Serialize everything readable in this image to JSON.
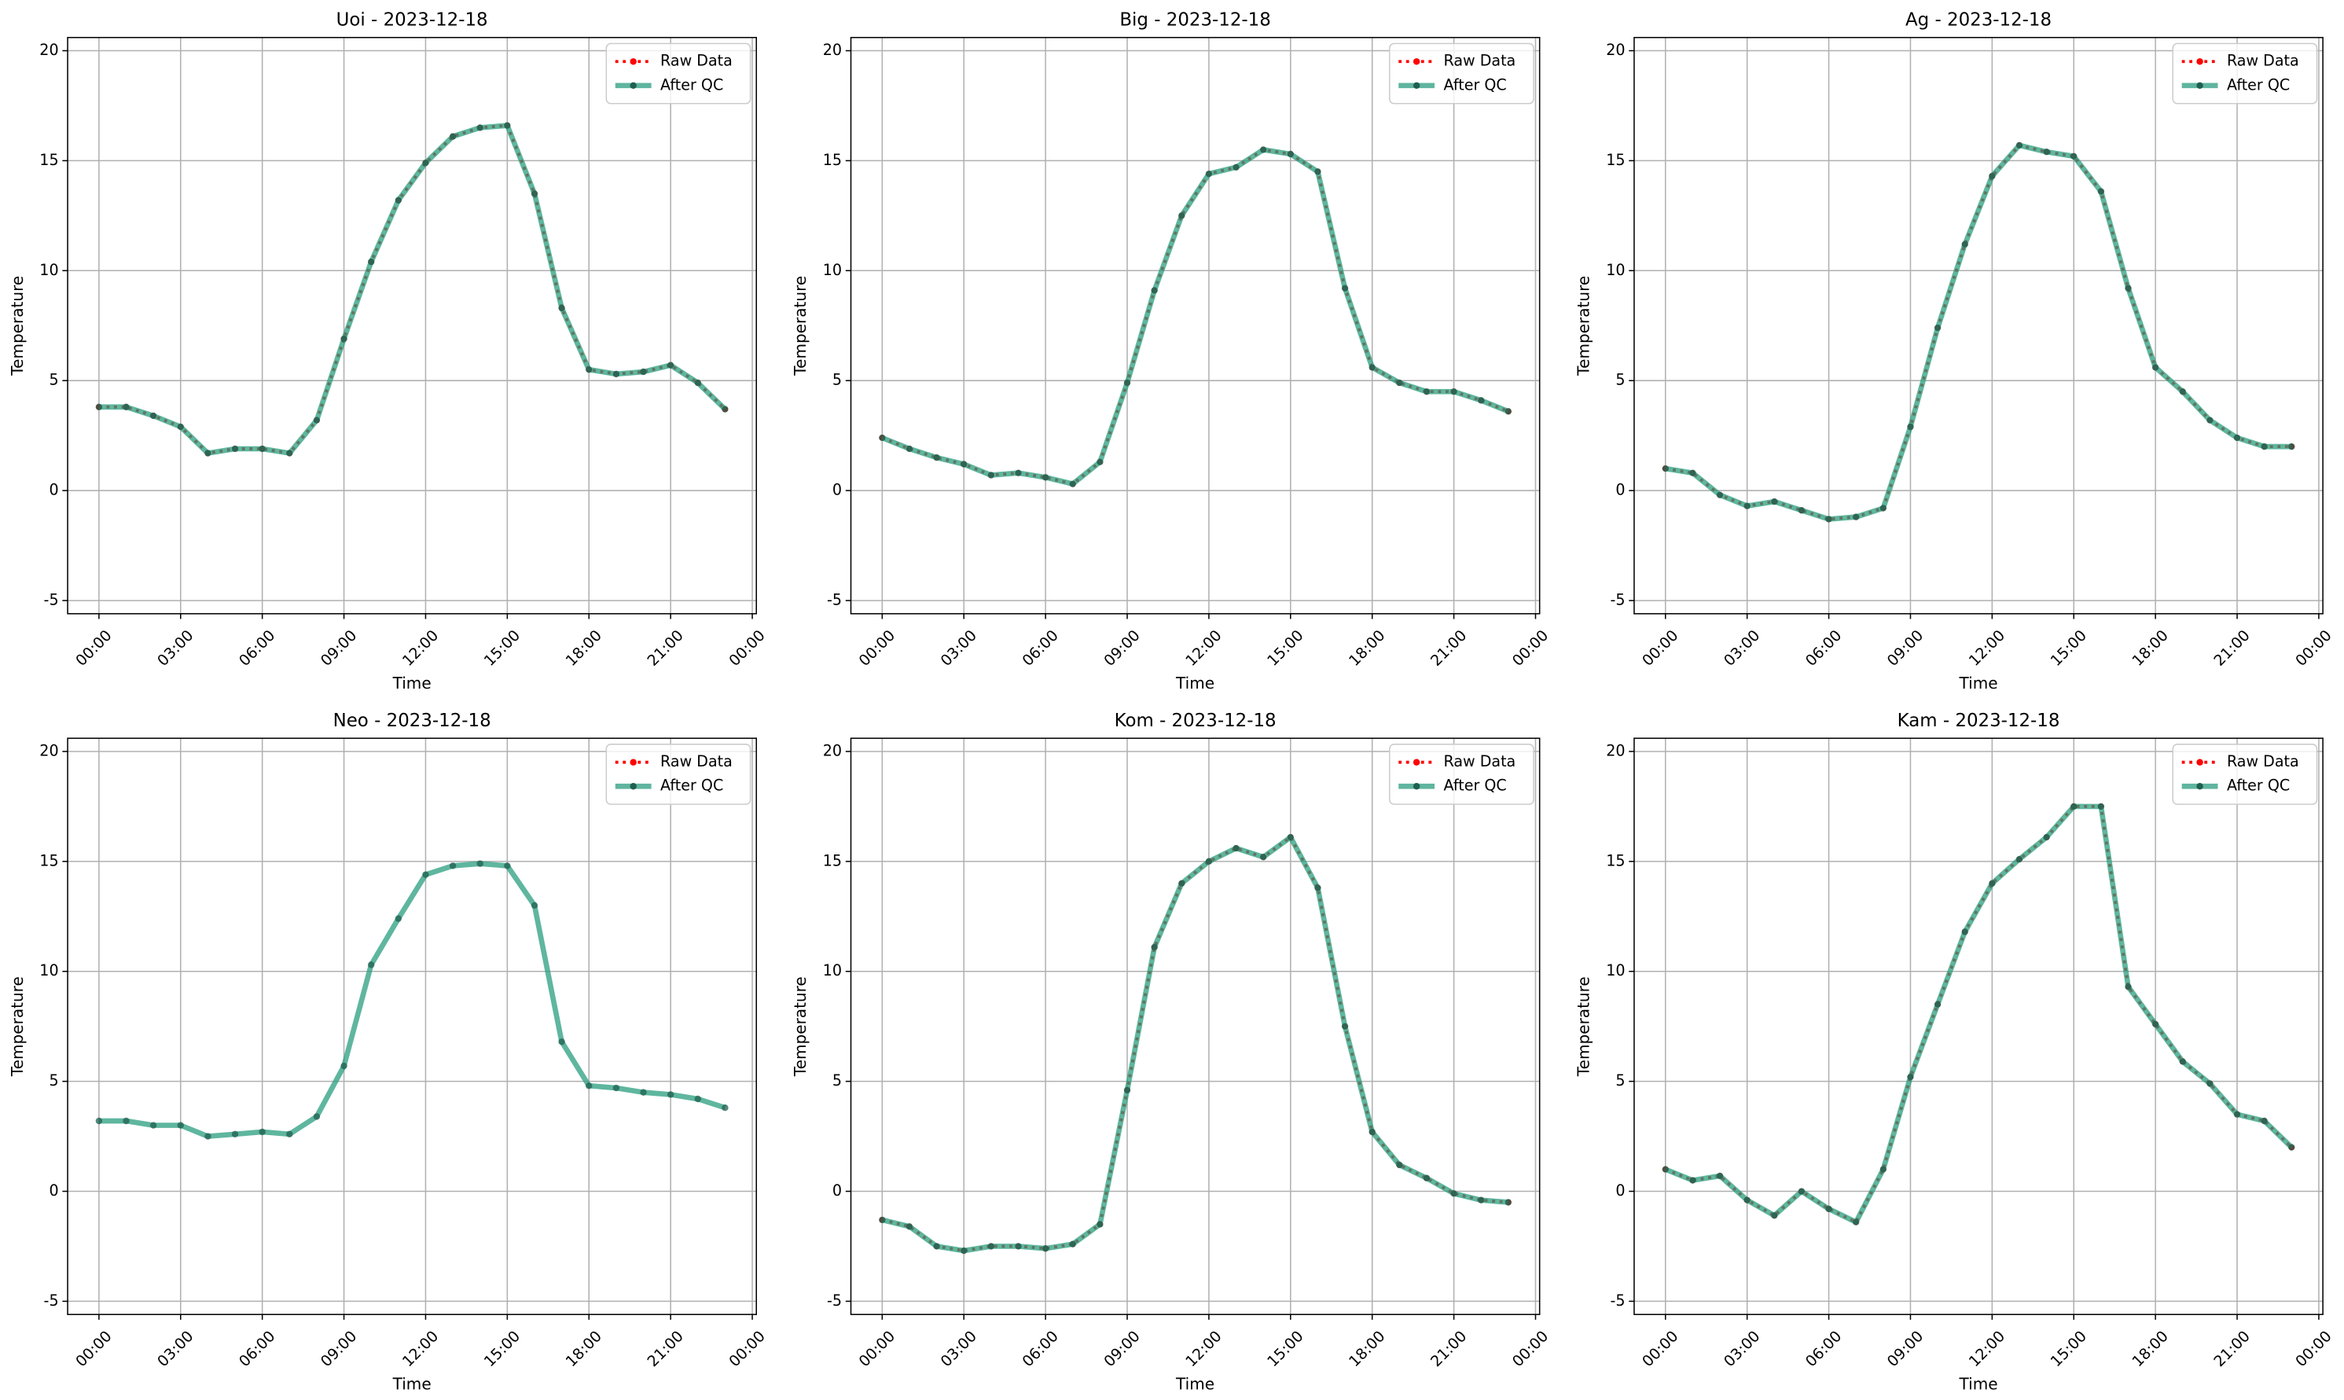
{
  "chart_data": [
    {
      "type": "line",
      "title": "Uoi - 2023-12-18",
      "xlabel": "Time",
      "ylabel": "Temperature",
      "x": [
        0,
        1,
        2,
        3,
        4,
        5,
        6,
        7,
        8,
        9,
        10,
        11,
        12,
        13,
        14,
        15,
        16,
        17,
        18,
        19,
        20,
        21,
        22,
        23
      ],
      "xlim": [
        -1.15,
        24.15
      ],
      "ylim": [
        -5.6,
        20.6
      ],
      "xticks": [
        {
          "value": 0,
          "label": "00:00"
        },
        {
          "value": 3,
          "label": "03:00"
        },
        {
          "value": 6,
          "label": "06:00"
        },
        {
          "value": 9,
          "label": "09:00"
        },
        {
          "value": 12,
          "label": "12:00"
        },
        {
          "value": 15,
          "label": "15:00"
        },
        {
          "value": 18,
          "label": "18:00"
        },
        {
          "value": 21,
          "label": "21:00"
        },
        {
          "value": 24,
          "label": "00:00"
        }
      ],
      "yticks": [
        -5,
        0,
        5,
        10,
        15,
        20
      ],
      "grid": true,
      "legend": "upper right",
      "series": [
        {
          "name": "Raw Data",
          "color": "#ff0000",
          "values": [
            3.8,
            3.8,
            3.4,
            2.9,
            1.7,
            1.9,
            1.9,
            1.7,
            3.2,
            6.9,
            10.4,
            13.2,
            14.9,
            16.1,
            16.5,
            16.6,
            13.5,
            8.3,
            5.5,
            5.3,
            5.4,
            5.7,
            4.9,
            3.7
          ]
        },
        {
          "name": "After QC",
          "color": "#2a9d7f",
          "values": [
            3.8,
            3.8,
            3.4,
            2.9,
            1.7,
            1.9,
            1.9,
            1.7,
            3.2,
            6.9,
            10.4,
            13.2,
            14.9,
            16.1,
            16.5,
            16.6,
            13.5,
            8.3,
            5.5,
            5.3,
            5.4,
            5.7,
            4.9,
            3.7
          ]
        }
      ]
    },
    {
      "type": "line",
      "title": "Big - 2023-12-18",
      "xlabel": "Time",
      "ylabel": "Temperature",
      "x": [
        0,
        1,
        2,
        3,
        4,
        5,
        6,
        7,
        8,
        9,
        10,
        11,
        12,
        13,
        14,
        15,
        16,
        17,
        18,
        19,
        20,
        21,
        22,
        23
      ],
      "xlim": [
        -1.15,
        24.15
      ],
      "ylim": [
        -5.6,
        20.6
      ],
      "xticks": [
        {
          "value": 0,
          "label": "00:00"
        },
        {
          "value": 3,
          "label": "03:00"
        },
        {
          "value": 6,
          "label": "06:00"
        },
        {
          "value": 9,
          "label": "09:00"
        },
        {
          "value": 12,
          "label": "12:00"
        },
        {
          "value": 15,
          "label": "15:00"
        },
        {
          "value": 18,
          "label": "18:00"
        },
        {
          "value": 21,
          "label": "21:00"
        },
        {
          "value": 24,
          "label": "00:00"
        }
      ],
      "yticks": [
        -5,
        0,
        5,
        10,
        15,
        20
      ],
      "grid": true,
      "legend": "upper right",
      "series": [
        {
          "name": "Raw Data",
          "color": "#ff0000",
          "values": [
            2.4,
            1.9,
            1.5,
            1.2,
            0.7,
            0.8,
            0.6,
            0.3,
            1.3,
            4.9,
            9.1,
            12.5,
            14.4,
            14.7,
            15.5,
            15.3,
            14.5,
            9.2,
            5.6,
            4.9,
            4.5,
            4.5,
            4.1,
            3.6
          ]
        },
        {
          "name": "After QC",
          "color": "#2a9d7f",
          "values": [
            2.4,
            1.9,
            1.5,
            1.2,
            0.7,
            0.8,
            0.6,
            0.3,
            1.3,
            4.9,
            9.1,
            12.5,
            14.4,
            14.7,
            15.5,
            15.3,
            14.5,
            9.2,
            5.6,
            4.9,
            4.5,
            4.5,
            4.1,
            3.6
          ]
        }
      ]
    },
    {
      "type": "line",
      "title": "Ag - 2023-12-18",
      "xlabel": "Time",
      "ylabel": "Temperature",
      "x": [
        0,
        1,
        2,
        3,
        4,
        5,
        6,
        7,
        8,
        9,
        10,
        11,
        12,
        13,
        14,
        15,
        16,
        17,
        18,
        19,
        20,
        21,
        22,
        23
      ],
      "xlim": [
        -1.15,
        24.15
      ],
      "ylim": [
        -5.6,
        20.6
      ],
      "xticks": [
        {
          "value": 0,
          "label": "00:00"
        },
        {
          "value": 3,
          "label": "03:00"
        },
        {
          "value": 6,
          "label": "06:00"
        },
        {
          "value": 9,
          "label": "09:00"
        },
        {
          "value": 12,
          "label": "12:00"
        },
        {
          "value": 15,
          "label": "15:00"
        },
        {
          "value": 18,
          "label": "18:00"
        },
        {
          "value": 21,
          "label": "21:00"
        },
        {
          "value": 24,
          "label": "00:00"
        }
      ],
      "yticks": [
        -5,
        0,
        5,
        10,
        15,
        20
      ],
      "grid": true,
      "legend": "upper right",
      "series": [
        {
          "name": "Raw Data",
          "color": "#ff0000",
          "values": [
            1.0,
            0.8,
            -0.2,
            -0.7,
            -0.5,
            -0.9,
            -1.3,
            -1.2,
            -0.8,
            2.9,
            7.4,
            11.2,
            14.3,
            15.7,
            15.4,
            15.2,
            13.6,
            9.2,
            5.6,
            4.5,
            3.2,
            2.4,
            2.0,
            2.0
          ]
        },
        {
          "name": "After QC",
          "color": "#2a9d7f",
          "values": [
            1.0,
            0.8,
            -0.2,
            -0.7,
            -0.5,
            -0.9,
            -1.3,
            -1.2,
            -0.8,
            2.9,
            7.4,
            11.2,
            14.3,
            15.7,
            15.4,
            15.2,
            13.6,
            9.2,
            5.6,
            4.5,
            3.2,
            2.4,
            2.0,
            2.0
          ]
        }
      ]
    },
    {
      "type": "line",
      "title": "Neo - 2023-12-18",
      "xlabel": "Time",
      "ylabel": "Temperature",
      "x": [
        0,
        1,
        2,
        3,
        4,
        5,
        6,
        7,
        8,
        9,
        10,
        11,
        12,
        13,
        14,
        15,
        16,
        17,
        18,
        19,
        20,
        21,
        22,
        23
      ],
      "xlim": [
        -1.15,
        24.15
      ],
      "ylim": [
        -5.6,
        20.6
      ],
      "xticks": [
        {
          "value": 0,
          "label": "00:00"
        },
        {
          "value": 3,
          "label": "03:00"
        },
        {
          "value": 6,
          "label": "06:00"
        },
        {
          "value": 9,
          "label": "09:00"
        },
        {
          "value": 12,
          "label": "12:00"
        },
        {
          "value": 15,
          "label": "15:00"
        },
        {
          "value": 18,
          "label": "18:00"
        },
        {
          "value": 21,
          "label": "21:00"
        },
        {
          "value": 24,
          "label": "00:00"
        }
      ],
      "yticks": [
        -5,
        0,
        5,
        10,
        15,
        20
      ],
      "grid": true,
      "legend": "upper right",
      "series": [
        {
          "name": "Raw Data",
          "color": "#ff0000",
          "values": [
            null,
            null,
            null,
            null,
            null,
            null,
            null,
            null,
            null,
            null,
            null,
            null,
            null,
            null,
            null,
            null,
            null,
            null,
            null,
            null,
            null,
            null,
            null,
            null
          ]
        },
        {
          "name": "After QC",
          "color": "#2a9d7f",
          "values": [
            3.2,
            3.2,
            3.0,
            3.0,
            2.5,
            2.6,
            2.7,
            2.6,
            3.4,
            5.7,
            10.3,
            12.4,
            14.4,
            14.8,
            14.9,
            14.8,
            13.0,
            6.8,
            4.8,
            4.7,
            4.5,
            4.4,
            4.2,
            3.8
          ]
        }
      ]
    },
    {
      "type": "line",
      "title": "Kom - 2023-12-18",
      "xlabel": "Time",
      "ylabel": "Temperature",
      "x": [
        0,
        1,
        2,
        3,
        4,
        5,
        6,
        7,
        8,
        9,
        10,
        11,
        12,
        13,
        14,
        15,
        16,
        17,
        18,
        19,
        20,
        21,
        22,
        23
      ],
      "xlim": [
        -1.15,
        24.15
      ],
      "ylim": [
        -5.6,
        20.6
      ],
      "xticks": [
        {
          "value": 0,
          "label": "00:00"
        },
        {
          "value": 3,
          "label": "03:00"
        },
        {
          "value": 6,
          "label": "06:00"
        },
        {
          "value": 9,
          "label": "09:00"
        },
        {
          "value": 12,
          "label": "12:00"
        },
        {
          "value": 15,
          "label": "15:00"
        },
        {
          "value": 18,
          "label": "18:00"
        },
        {
          "value": 21,
          "label": "21:00"
        },
        {
          "value": 24,
          "label": "00:00"
        }
      ],
      "yticks": [
        -5,
        0,
        5,
        10,
        15,
        20
      ],
      "grid": true,
      "legend": "upper right",
      "series": [
        {
          "name": "Raw Data",
          "color": "#ff0000",
          "values": [
            -1.3,
            -1.6,
            -2.5,
            -2.7,
            -2.5,
            -2.5,
            -2.6,
            -2.4,
            -1.5,
            4.6,
            11.1,
            14.0,
            15.0,
            15.6,
            15.2,
            16.1,
            13.8,
            7.5,
            2.7,
            1.2,
            0.6,
            -0.1,
            -0.4,
            -0.5
          ]
        },
        {
          "name": "After QC",
          "color": "#2a9d7f",
          "values": [
            -1.3,
            -1.6,
            -2.5,
            -2.7,
            -2.5,
            -2.5,
            -2.6,
            -2.4,
            -1.5,
            4.6,
            11.1,
            14.0,
            15.0,
            15.6,
            15.2,
            16.1,
            13.8,
            7.5,
            2.7,
            1.2,
            0.6,
            -0.1,
            -0.4,
            -0.5
          ]
        }
      ]
    },
    {
      "type": "line",
      "title": "Kam - 2023-12-18",
      "xlabel": "Time",
      "ylabel": "Temperature",
      "x": [
        0,
        1,
        2,
        3,
        4,
        5,
        6,
        7,
        8,
        9,
        10,
        11,
        12,
        13,
        14,
        15,
        16,
        17,
        18,
        19,
        20,
        21,
        22,
        23
      ],
      "xlim": [
        -1.15,
        24.15
      ],
      "ylim": [
        -5.6,
        20.6
      ],
      "xticks": [
        {
          "value": 0,
          "label": "00:00"
        },
        {
          "value": 3,
          "label": "03:00"
        },
        {
          "value": 6,
          "label": "06:00"
        },
        {
          "value": 9,
          "label": "09:00"
        },
        {
          "value": 12,
          "label": "12:00"
        },
        {
          "value": 15,
          "label": "15:00"
        },
        {
          "value": 18,
          "label": "18:00"
        },
        {
          "value": 21,
          "label": "21:00"
        },
        {
          "value": 24,
          "label": "00:00"
        }
      ],
      "yticks": [
        -5,
        0,
        5,
        10,
        15,
        20
      ],
      "grid": true,
      "legend": "upper right",
      "series": [
        {
          "name": "Raw Data",
          "color": "#ff0000",
          "values": [
            1.0,
            0.5,
            0.7,
            -0.4,
            -1.1,
            0.0,
            -0.8,
            -1.4,
            1.0,
            5.2,
            8.5,
            11.8,
            14.0,
            15.1,
            16.1,
            17.5,
            17.5,
            9.3,
            7.6,
            5.9,
            4.9,
            3.5,
            3.2,
            2.0
          ]
        },
        {
          "name": "After QC",
          "color": "#2a9d7f",
          "values": [
            1.0,
            0.5,
            0.7,
            -0.4,
            -1.1,
            0.0,
            -0.8,
            -1.4,
            1.0,
            5.2,
            8.5,
            11.8,
            14.0,
            15.1,
            16.1,
            17.5,
            17.5,
            9.3,
            7.6,
            5.9,
            4.9,
            3.5,
            3.2,
            2.0
          ]
        }
      ]
    }
  ]
}
